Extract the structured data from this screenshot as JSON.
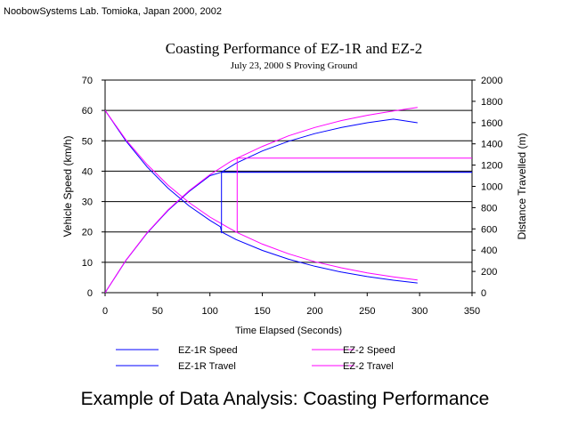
{
  "credit": "NoobowSystems Lab. Tomioka, Japan 2000, 2002",
  "caption": "Example of Data Analysis: Coasting Performance",
  "chart_data": {
    "type": "line",
    "title": "Coasting Performance of EZ-1R and EZ-2",
    "subtitle": "July 23, 2000 S Proving Ground",
    "xlabel": "Time Elapsed (Seconds)",
    "ylabel": "Vehicle Speed (km/h)",
    "y2label": "Distance Travelled (m)",
    "xlim": [
      0,
      350
    ],
    "ylim": [
      0,
      70
    ],
    "y2lim": [
      0,
      2000
    ],
    "xticks": [
      "0",
      "50",
      "100",
      "150",
      "200",
      "250",
      "300",
      "350"
    ],
    "yticks": [
      "0",
      "10",
      "20",
      "30",
      "40",
      "50",
      "60",
      "70"
    ],
    "y2ticks": [
      "0",
      "200",
      "400",
      "600",
      "800",
      "1000",
      "1200",
      "1400",
      "1600",
      "1800",
      "2000"
    ],
    "grid": "horizontal",
    "legend_position": "bottom",
    "series": [
      {
        "name": "EZ-1R Speed",
        "axis": "left",
        "color": "#0000ff",
        "x": [
          0,
          20,
          40,
          60,
          80,
          100,
          110,
          111,
          125,
          150,
          175,
          200,
          225,
          250,
          275,
          298
        ],
        "y": [
          60,
          49.9,
          41.4,
          34.4,
          28.6,
          23.8,
          21.7,
          20,
          17.5,
          13.9,
          11.0,
          8.7,
          6.8,
          5.3,
          4.1,
          3.2
        ]
      },
      {
        "name": "EZ-2 Speed",
        "axis": "left",
        "color": "#ff00ff",
        "x": [
          0,
          20,
          40,
          60,
          80,
          100,
          120,
          125,
          126,
          150,
          175,
          200,
          225,
          250,
          275,
          298
        ],
        "y": [
          60,
          50.3,
          42.2,
          35.4,
          29.7,
          24.9,
          20.9,
          20,
          19.8,
          16.0,
          12.8,
          10.2,
          8.2,
          6.5,
          5.2,
          4.2
        ]
      },
      {
        "name": "EZ-1R Travel",
        "axis": "right",
        "color": "#0000ff",
        "x": [
          0,
          20,
          40,
          60,
          80,
          100,
          111,
          125,
          150,
          175,
          200,
          225,
          250,
          275,
          298
        ],
        "y": [
          0,
          305,
          560,
          773,
          951,
          1100,
          1133,
          1218,
          1333,
          1424,
          1496,
          1553,
          1598,
          1633,
          1598
        ]
      },
      {
        "name": "EZ-2 Travel",
        "axis": "right",
        "color": "#ff00ff",
        "x": [
          0,
          20,
          40,
          60,
          80,
          100,
          120,
          126,
          150,
          175,
          200,
          225,
          250,
          275,
          298
        ],
        "y": [
          0,
          306,
          563,
          778,
          958,
          1110,
          1236,
          1265,
          1376,
          1475,
          1554,
          1618,
          1669,
          1710,
          1743
        ]
      },
      {
        "name": "",
        "axis": "right",
        "color": "#0000ff",
        "role": "marker",
        "x": [
          111,
          111,
          350
        ],
        "y": [
          560,
          1133,
          1133
        ]
      },
      {
        "name": "",
        "axis": "right",
        "color": "#0000ff",
        "role": "marker",
        "x": [
          111,
          350
        ],
        "y": [
          1133,
          1133
        ]
      },
      {
        "name": "",
        "axis": "right",
        "color": "#ff00ff",
        "role": "marker",
        "x": [
          126,
          126,
          350
        ],
        "y": [
          572,
          1265,
          1265
        ]
      }
    ]
  }
}
